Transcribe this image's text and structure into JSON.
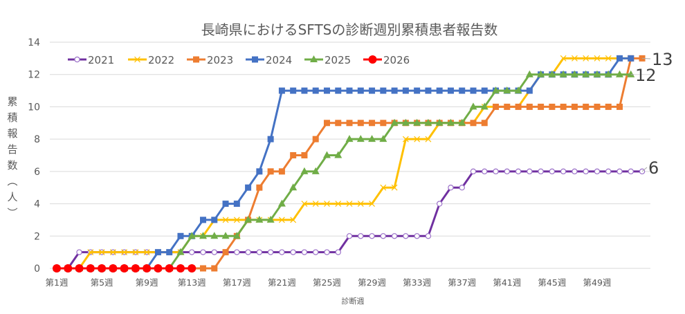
{
  "chart_data": {
    "type": "line",
    "title": "長崎県におけるSFTSの診断週別累積患者報告数",
    "xlabel": "診断週",
    "ylabel": "累積報告数（人）",
    "ylim": [
      0,
      14
    ],
    "yticks": [
      0,
      2,
      4,
      6,
      8,
      10,
      12,
      14
    ],
    "grid": true,
    "legend_position": "top-left inside",
    "x_tick_labels": [
      "第1週",
      "第5週",
      "第9週",
      "第13週",
      "第17週",
      "第21週",
      "第25週",
      "第29週",
      "第33週",
      "第37週",
      "第41週",
      "第45週",
      "第49週"
    ],
    "x_tick_weeks": [
      1,
      5,
      9,
      13,
      17,
      21,
      25,
      29,
      33,
      37,
      41,
      45,
      49
    ],
    "x_range_weeks": [
      1,
      53
    ],
    "series": [
      {
        "name": "2021",
        "color": "#7030A0",
        "marker": "circle-open",
        "values": [
          0,
          0,
          1,
          1,
          1,
          1,
          1,
          1,
          1,
          1,
          1,
          1,
          1,
          1,
          1,
          1,
          1,
          1,
          1,
          1,
          1,
          1,
          1,
          1,
          1,
          1,
          2,
          2,
          2,
          2,
          2,
          2,
          2,
          2,
          4,
          5,
          5,
          6,
          6,
          6,
          6,
          6,
          6,
          6,
          6,
          6,
          6,
          6,
          6,
          6,
          6,
          6,
          6
        ],
        "end_label": "6"
      },
      {
        "name": "2022",
        "color": "#FFC000",
        "marker": "x",
        "values": [
          0,
          0,
          0,
          1,
          1,
          1,
          1,
          1,
          1,
          1,
          1,
          1,
          2,
          2,
          3,
          3,
          3,
          3,
          3,
          3,
          3,
          3,
          4,
          4,
          4,
          4,
          4,
          4,
          4,
          5,
          5,
          8,
          8,
          8,
          9,
          9,
          9,
          9,
          10,
          10,
          10,
          10,
          11,
          12,
          12,
          13,
          13,
          13,
          13,
          13,
          13,
          13
        ]
      },
      {
        "name": "2023",
        "color": "#ED7D31",
        "marker": "square",
        "values": [
          0,
          0,
          0,
          0,
          0,
          0,
          0,
          0,
          0,
          0,
          0,
          0,
          0,
          0,
          0,
          1,
          2,
          3,
          5,
          6,
          6,
          7,
          7,
          8,
          9,
          9,
          9,
          9,
          9,
          9,
          9,
          9,
          9,
          9,
          9,
          9,
          9,
          9,
          9,
          10,
          10,
          10,
          10,
          10,
          10,
          10,
          10,
          10,
          10,
          10,
          10,
          13,
          13
        ],
        "end_label": "13"
      },
      {
        "name": "2024",
        "color": "#4472C4",
        "marker": "square",
        "values": [
          0,
          0,
          0,
          0,
          0,
          0,
          0,
          0,
          0,
          1,
          1,
          2,
          2,
          3,
          3,
          4,
          4,
          5,
          6,
          8,
          11,
          11,
          11,
          11,
          11,
          11,
          11,
          11,
          11,
          11,
          11,
          11,
          11,
          11,
          11,
          11,
          11,
          11,
          11,
          11,
          11,
          11,
          11,
          12,
          12,
          12,
          12,
          12,
          12,
          12,
          13,
          13
        ]
      },
      {
        "name": "2025",
        "color": "#70AD47",
        "marker": "triangle",
        "values": [
          0,
          0,
          0,
          0,
          0,
          0,
          0,
          0,
          0,
          0,
          0,
          1,
          2,
          2,
          2,
          2,
          2,
          3,
          3,
          3,
          4,
          5,
          6,
          6,
          7,
          7,
          8,
          8,
          8,
          8,
          9,
          9,
          9,
          9,
          9,
          9,
          9,
          10,
          10,
          11,
          11,
          11,
          12,
          12,
          12,
          12,
          12,
          12,
          12,
          12,
          12,
          12
        ],
        "end_label": "12"
      },
      {
        "name": "2026",
        "color": "#FF0000",
        "marker": "circle-filled",
        "values": [
          0,
          0,
          0,
          0,
          0,
          0,
          0,
          0,
          0,
          0,
          0,
          0,
          0
        ]
      }
    ]
  }
}
